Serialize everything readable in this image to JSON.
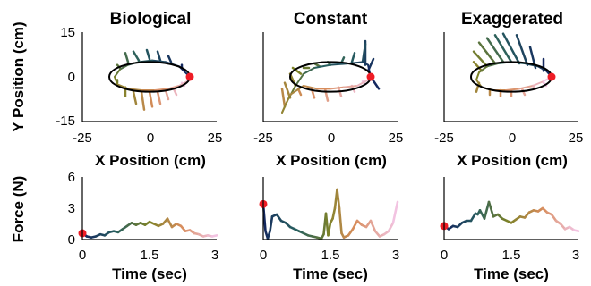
{
  "chart_data": [
    {
      "type": "line",
      "title": "Biological",
      "xlabel": "X Position (cm)",
      "ylabel": "Y Position (cm)",
      "xlim": [
        -25,
        25
      ],
      "ylim": [
        -15,
        15
      ],
      "xticks": [
        "-25",
        "0",
        "25"
      ],
      "yticks": [
        "15",
        "0",
        "-15"
      ],
      "ellipse": {
        "cx": 0,
        "cy": 0,
        "rx": 15,
        "ry": 5
      },
      "start_point": {
        "x": 15,
        "y": 0
      },
      "trajectory": {
        "x": [
          15,
          11,
          6,
          1,
          -4,
          -8,
          -11,
          -13,
          -12,
          -8,
          -3,
          2,
          7,
          11,
          14,
          15
        ],
        "y": [
          0,
          3.5,
          5,
          5.5,
          5,
          4,
          2.5,
          0,
          -2.5,
          -4,
          -4.5,
          -4.5,
          -4,
          -3,
          -1.5,
          0
        ]
      },
      "force_vectors": {
        "x": [
          12,
          8,
          4,
          0,
          -4,
          -8,
          -11,
          -12,
          -9,
          -6,
          -3,
          0,
          3,
          6,
          9,
          12
        ],
        "y": [
          3,
          5,
          5.5,
          6,
          5.5,
          5,
          3,
          -1,
          -3.5,
          -5,
          -5,
          -5,
          -5,
          -4.5,
          -4,
          -2
        ],
        "dx": [
          0,
          -1,
          -1,
          -1,
          -2,
          -1,
          -1,
          0,
          0,
          1,
          1,
          1,
          1,
          1,
          1,
          1
        ],
        "dy": [
          1,
          2,
          3,
          3,
          3,
          3,
          1,
          -1,
          -3,
          -4,
          -6,
          -5,
          -4,
          -3,
          -2,
          -1
        ]
      }
    },
    {
      "type": "line",
      "title": "Constant",
      "xlabel": "X Position (cm)",
      "ylabel": "",
      "xlim": [
        -25,
        25
      ],
      "ylim": [
        -15,
        15
      ],
      "xticks": [
        "-25",
        "0",
        "25"
      ],
      "ellipse": {
        "cx": 0,
        "cy": 0,
        "rx": 15,
        "ry": 5
      },
      "start_point": {
        "x": 15,
        "y": 0
      },
      "trajectory": {
        "x": [
          15,
          14,
          12,
          7,
          0,
          -6,
          -10,
          -13,
          -16,
          -18,
          -15,
          -10,
          -5,
          0,
          5,
          10,
          14,
          15
        ],
        "y": [
          0,
          4,
          5,
          4.5,
          4,
          3,
          1,
          -3,
          -8,
          -12,
          -6,
          -3,
          -4,
          -4,
          -3.5,
          -3,
          -1,
          0
        ]
      },
      "force_vectors": {
        "x": [
          15,
          14,
          13,
          12,
          8,
          4,
          0,
          -4,
          -8,
          -11,
          -13,
          -15,
          -17,
          -12,
          -7,
          -2,
          3,
          8,
          12
        ],
        "y": [
          0,
          2,
          4,
          5,
          5,
          4.5,
          4,
          3.5,
          3,
          1,
          -3,
          -7,
          -10,
          -4,
          -4,
          -4,
          -3.5,
          -3,
          -1.5
        ],
        "dx": [
          3,
          2,
          0,
          1,
          1,
          1,
          -1,
          -2,
          -2,
          -3,
          -2,
          -2,
          -1,
          1,
          1,
          1,
          1,
          1,
          1
        ],
        "dy": [
          -4,
          4,
          8,
          6,
          3,
          2,
          1,
          1,
          0,
          2,
          4,
          5,
          6,
          -2,
          -3,
          -4,
          -3,
          -2,
          -1
        ]
      }
    },
    {
      "type": "line",
      "title": "Exaggerated",
      "xlabel": "X Position (cm)",
      "ylabel": "",
      "xlim": [
        -25,
        25
      ],
      "ylim": [
        -15,
        15
      ],
      "xticks": [
        "-25",
        "0",
        "25"
      ],
      "ellipse": {
        "cx": 0,
        "cy": 0,
        "rx": 15,
        "ry": 5
      },
      "start_point": {
        "x": 15,
        "y": 0
      },
      "trajectory": {
        "x": [
          15,
          13,
          10,
          5,
          0,
          -5,
          -9,
          -12,
          -13,
          -11,
          -7,
          -2,
          3,
          8,
          12,
          15
        ],
        "y": [
          0,
          2,
          3.5,
          4.5,
          5,
          4.5,
          3.5,
          1.5,
          -1,
          -3.5,
          -4.5,
          -4.5,
          -4,
          -3,
          -1.5,
          0
        ]
      },
      "force_vectors": {
        "x": [
          12,
          9,
          6,
          3,
          0,
          -3,
          -6,
          -9,
          -11,
          -12,
          -8,
          -4,
          0,
          4,
          8,
          12
        ],
        "y": [
          2,
          3,
          4,
          4.5,
          5,
          5,
          4.5,
          3.5,
          2,
          -2,
          -4,
          -4.5,
          -4.5,
          -4,
          -3,
          -2
        ],
        "dx": [
          0,
          -2,
          -4,
          -6,
          -6,
          -6,
          -6,
          -5,
          -3,
          -1,
          0,
          0,
          0,
          1,
          1,
          1
        ],
        "dy": [
          4,
          7,
          10,
          10,
          9,
          8,
          7,
          5,
          3,
          -3,
          -2,
          -2,
          -2,
          -2,
          -1,
          -1
        ]
      }
    },
    {
      "type": "line",
      "title": "",
      "xlabel": "Time (sec)",
      "ylabel": "Force (N)",
      "xlim": [
        0,
        3
      ],
      "ylim": [
        0,
        6
      ],
      "xticks": [
        "0",
        "1.5",
        "3"
      ],
      "yticks": [
        "6",
        "3",
        "0"
      ],
      "start_point": {
        "x": 0,
        "y": 0.6
      },
      "series": [
        {
          "x": [
            0,
            0.1,
            0.2,
            0.3,
            0.4,
            0.5,
            0.6,
            0.7,
            0.8,
            0.9,
            1.0,
            1.1,
            1.2,
            1.3,
            1.4,
            1.5,
            1.6,
            1.7,
            1.8,
            1.9,
            2.0,
            2.1,
            2.2,
            2.3,
            2.4,
            2.5,
            2.6,
            2.7,
            2.8,
            2.9,
            3.0
          ],
          "y": [
            0.6,
            0.3,
            0.2,
            0.3,
            0.5,
            0.4,
            0.7,
            0.8,
            0.7,
            1.0,
            1.3,
            1.6,
            1.4,
            1.6,
            1.4,
            1.7,
            1.5,
            1.3,
            1.5,
            2.0,
            1.2,
            1.5,
            1.3,
            0.8,
            0.9,
            0.6,
            0.5,
            0.3,
            0.4,
            0.3,
            0.4
          ]
        }
      ]
    },
    {
      "type": "line",
      "title": "",
      "xlabel": "Time (sec)",
      "ylabel": "",
      "xlim": [
        0,
        3
      ],
      "ylim": [
        0,
        6
      ],
      "xticks": [
        "0",
        "1.5",
        "3"
      ],
      "start_point": {
        "x": 0,
        "y": 3.4
      },
      "series": [
        {
          "x": [
            0,
            0.05,
            0.1,
            0.15,
            0.2,
            0.3,
            0.4,
            0.5,
            0.6,
            0.7,
            0.8,
            0.9,
            1.0,
            1.1,
            1.2,
            1.3,
            1.35,
            1.4,
            1.45,
            1.5,
            1.55,
            1.6,
            1.65,
            1.7,
            1.75,
            1.8,
            1.9,
            2.0,
            2.1,
            2.2,
            2.3,
            2.4,
            2.5,
            2.6,
            2.7,
            2.8,
            2.9,
            3.0
          ],
          "y": [
            3.4,
            0.8,
            0.1,
            0.8,
            2.2,
            2.4,
            1.8,
            1.6,
            1.2,
            1.0,
            0.8,
            0.6,
            0.4,
            0.3,
            0.2,
            0.1,
            0.5,
            2.5,
            0.4,
            1.6,
            2.0,
            3.0,
            4.8,
            3.0,
            0.6,
            0.2,
            0.4,
            1.0,
            1.8,
            1.4,
            1.2,
            1.8,
            0.8,
            0.3,
            0.5,
            0.8,
            1.6,
            3.6
          ]
        }
      ]
    },
    {
      "type": "line",
      "title": "",
      "xlabel": "Time (sec)",
      "ylabel": "",
      "xlim": [
        0,
        3
      ],
      "ylim": [
        0,
        6
      ],
      "xticks": [
        "0",
        "1.5",
        "3"
      ],
      "start_point": {
        "x": 0,
        "y": 1.3
      },
      "series": [
        {
          "x": [
            0,
            0.1,
            0.2,
            0.3,
            0.4,
            0.5,
            0.6,
            0.7,
            0.75,
            0.8,
            0.9,
            1.0,
            1.1,
            1.2,
            1.3,
            1.4,
            1.5,
            1.6,
            1.7,
            1.8,
            1.9,
            2.0,
            2.1,
            2.2,
            2.3,
            2.4,
            2.5,
            2.6,
            2.7,
            2.8,
            2.9,
            3.0
          ],
          "y": [
            1.3,
            1.0,
            1.3,
            1.2,
            1.6,
            1.8,
            1.8,
            2.5,
            2.4,
            2.8,
            2.0,
            3.6,
            2.2,
            2.4,
            2.0,
            1.8,
            1.6,
            1.9,
            2.2,
            2.1,
            2.6,
            2.8,
            2.7,
            3.0,
            2.6,
            2.4,
            1.8,
            1.5,
            1.0,
            1.2,
            0.9,
            0.8
          ]
        }
      ]
    }
  ]
}
